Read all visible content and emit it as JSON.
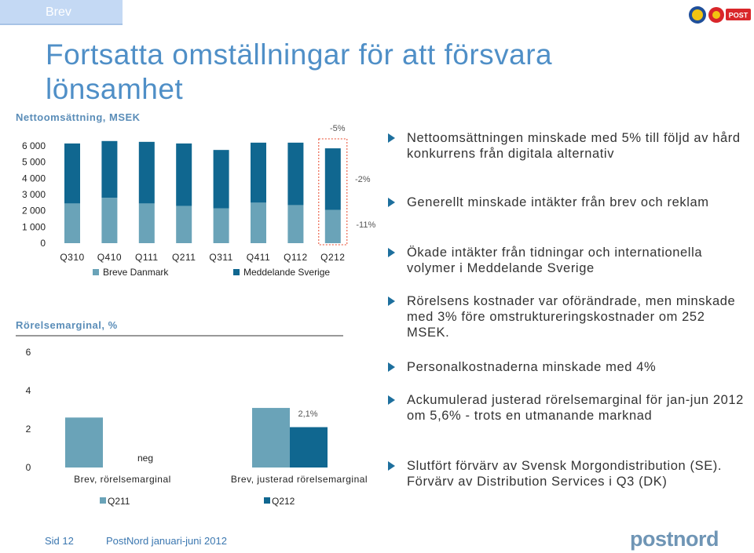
{
  "header": {
    "section_tab": "Brev",
    "logo_right_text": "POST"
  },
  "slide": {
    "title_line1": "Fortsatta omställningar för att försvara",
    "title_line2": "lönsamhet"
  },
  "colors": {
    "breve_danmark": "#6aa3b8",
    "meddelande_sverige": "#106790",
    "title": "#4f8fc7",
    "highlight_box": "#e8472a",
    "bullet_arrow": "#1d6f9d"
  },
  "chart_data": [
    {
      "type": "bar",
      "stacked": true,
      "title": "Nettoomsättning, MSEK",
      "categories": [
        "Q310",
        "Q410",
        "Q111",
        "Q211",
        "Q311",
        "Q411",
        "Q112",
        "Q212"
      ],
      "series": [
        {
          "name": "Breve Danmark",
          "values": [
            2450,
            2800,
            2450,
            2300,
            2150,
            2500,
            2350,
            2050
          ]
        },
        {
          "name": "Meddelande Sverige",
          "values": [
            3700,
            3500,
            3800,
            3850,
            3600,
            3700,
            3850,
            3800
          ]
        }
      ],
      "yticks": [
        "0",
        "1 000",
        "2 000",
        "3 000",
        "4 000",
        "5 000",
        "6 000"
      ],
      "ylim": [
        0,
        6000
      ],
      "annotations": [
        "-5%",
        "-2%",
        "-11%"
      ],
      "highlight_category": "Q212",
      "legend_placement": "bottom"
    },
    {
      "type": "bar",
      "title": "Rörelsemarginal, %",
      "categories": [
        "Brev, rörelsemarginal",
        "Brev, justerad rörelsemarginal"
      ],
      "series": [
        {
          "name": "Q211",
          "values": [
            2.6,
            3.1
          ]
        },
        {
          "name": "Q212",
          "values": [
            0,
            2.1
          ]
        }
      ],
      "data_labels": [
        "neg",
        "2,1%"
      ],
      "yticks": [
        "0",
        "2",
        "4",
        "6"
      ],
      "ylim": [
        0,
        6
      ],
      "legend_placement": "bottom"
    }
  ],
  "bullets": [
    "Nettoomsättningen minskade med 5% till följd av hård konkurrens från digitala alternativ",
    "Generellt minskade intäkter från brev och reklam",
    "Ökade intäkter från tidningar och internationella volymer i Meddelande Sverige",
    "Rörelsens kostnader var oförändrade, men minskade med 3% före omstruktureringskostnader om 252 MSEK.",
    "Personalkostnaderna minskade med 4%",
    "Ackumulerad justerad rörelsemarginal för jan-jun 2012 om 5,6% - trots en utmanande marknad",
    "Slutfört förvärv av Svensk Morgondistribution (SE). Förvärv av Distribution Services i Q3 (DK)"
  ],
  "footer": {
    "page": "Sid 12",
    "report": "PostNord januari-juni 2012",
    "logo": "postnord"
  }
}
